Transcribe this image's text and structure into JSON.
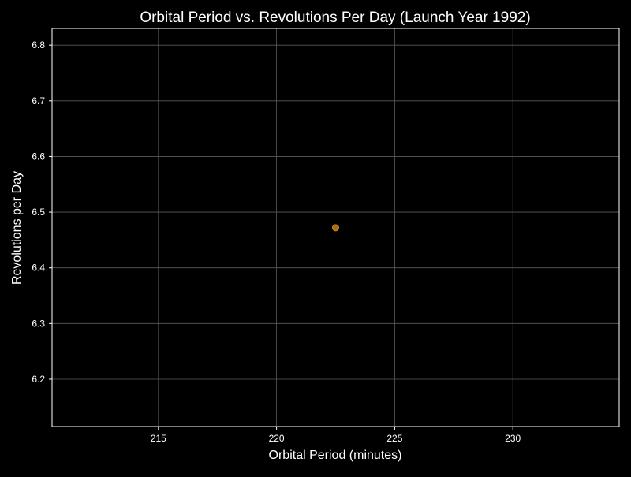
{
  "chart_data": {
    "type": "scatter",
    "title": "Orbital Period vs. Revolutions Per Day (Launch Year 1992)",
    "xlabel": "Orbital Period (minutes)",
    "ylabel": "Revolutions per Day",
    "xlim": [
      210.5,
      234.5
    ],
    "ylim": [
      6.115,
      6.83
    ],
    "xticks": [
      215,
      220,
      225,
      230
    ],
    "yticks": [
      6.2,
      6.3,
      6.4,
      6.5,
      6.6,
      6.7,
      6.8
    ],
    "xtick_labels": [
      "215",
      "220",
      "225",
      "230"
    ],
    "ytick_labels": [
      "6.2",
      "6.3",
      "6.4",
      "6.5",
      "6.6",
      "6.7",
      "6.8"
    ],
    "grid": true,
    "points": [
      {
        "x": 222.5,
        "y": 6.472
      }
    ],
    "colors": {
      "background": "#000000",
      "axes": "#ffffff",
      "grid": "#5a5a5a",
      "text": "#ffffff",
      "point_fill": "#b06d10",
      "point_edge": "#d08a2a"
    }
  }
}
